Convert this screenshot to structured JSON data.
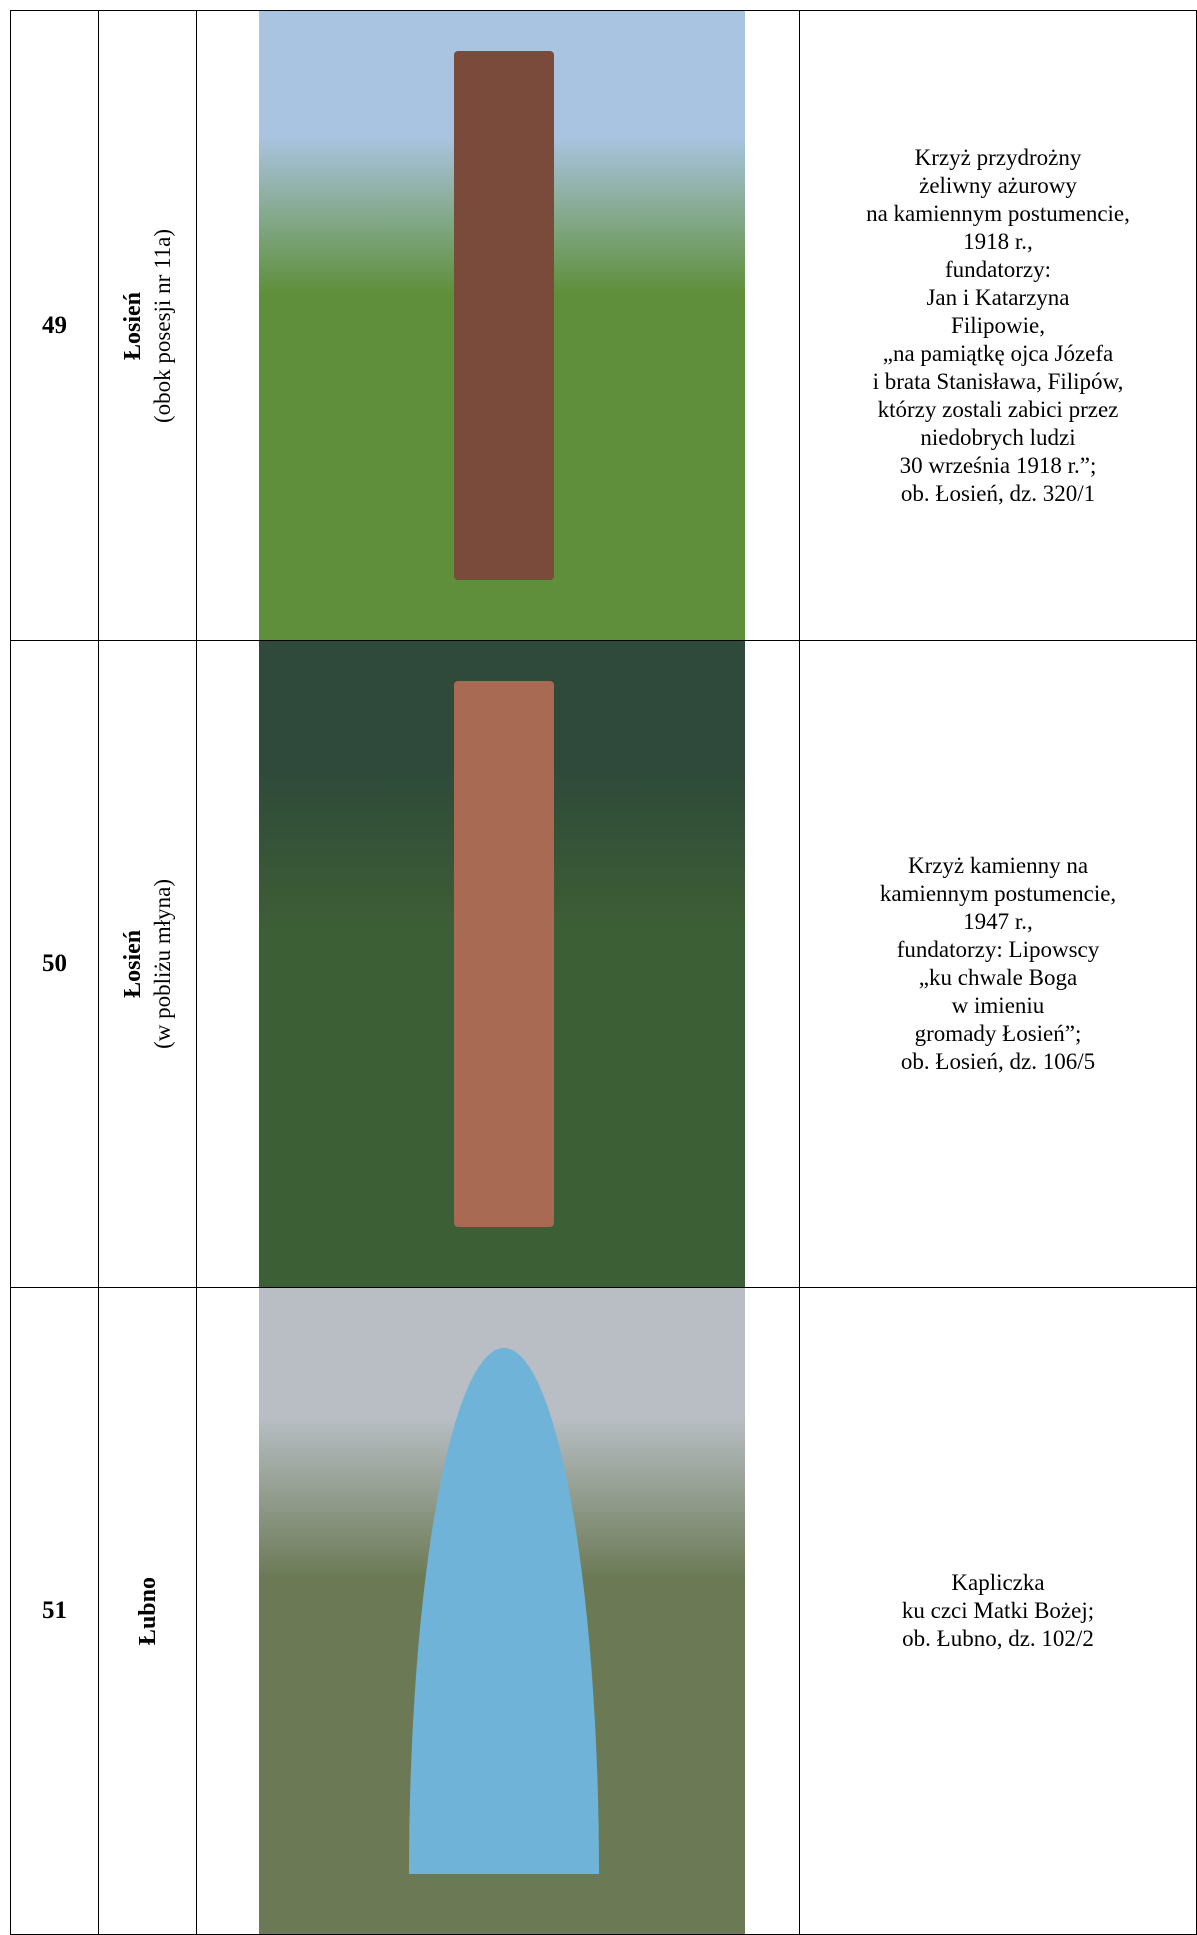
{
  "table": {
    "rows": [
      {
        "number": "49",
        "place": "Łosień",
        "place_note": "(obok posesji nr 11a)",
        "description": [
          "Krzyż przydrożny",
          "żeliwny ażurowy",
          "na kamiennym postumencie,",
          "1918 r.,",
          "fundatorzy:",
          "Jan i Katarzyna",
          "Filipowie,",
          "„na pamiątkę ojca Józefa",
          "i brata Stanisława, Filipów,",
          "którzy zostali zabici przez",
          "niedobrych ludzi",
          "30 września 1918 r.”;",
          "ob. Łosień, dz. 320/1"
        ]
      },
      {
        "number": "50",
        "place": "Łosień",
        "place_note": "(w pobliżu młyna)",
        "description": [
          "Krzyż kamienny na",
          "kamiennym postumencie,",
          "1947 r.,",
          "fundatorzy: Lipowscy",
          "„ku chwale Boga",
          "w imieniu",
          "gromady Łosień”;",
          "ob. Łosień, dz. 106/5"
        ]
      },
      {
        "number": "51",
        "place": "Łubno",
        "description": [
          "Kapliczka",
          "ku czci Matki Bożej;",
          "ob. Łubno, dz. 102/2"
        ]
      }
    ]
  }
}
